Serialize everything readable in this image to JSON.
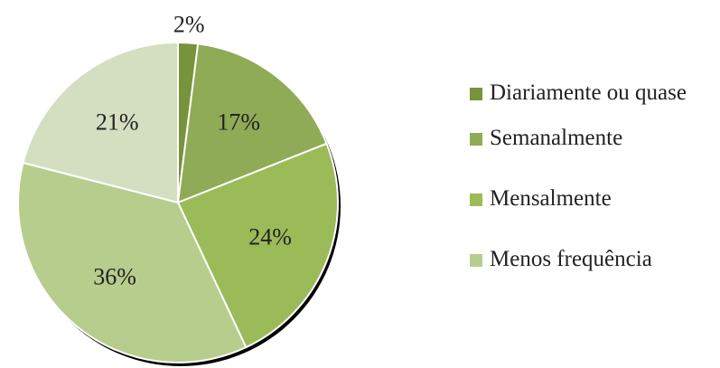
{
  "chart_data": {
    "type": "pie",
    "categories": [
      "Diariamente ou quase",
      "Semanalmente",
      "Mensalmente",
      "Menos frequência",
      null
    ],
    "values": [
      2,
      17,
      24,
      36,
      21
    ],
    "value_labels": [
      "2%",
      "17%",
      "24%",
      "36%",
      "21%"
    ],
    "colors": [
      "#77933c",
      "#8fab55",
      "#9bbb59",
      "#b7cd8d",
      "#d3dfc0"
    ],
    "legend": "right"
  }
}
